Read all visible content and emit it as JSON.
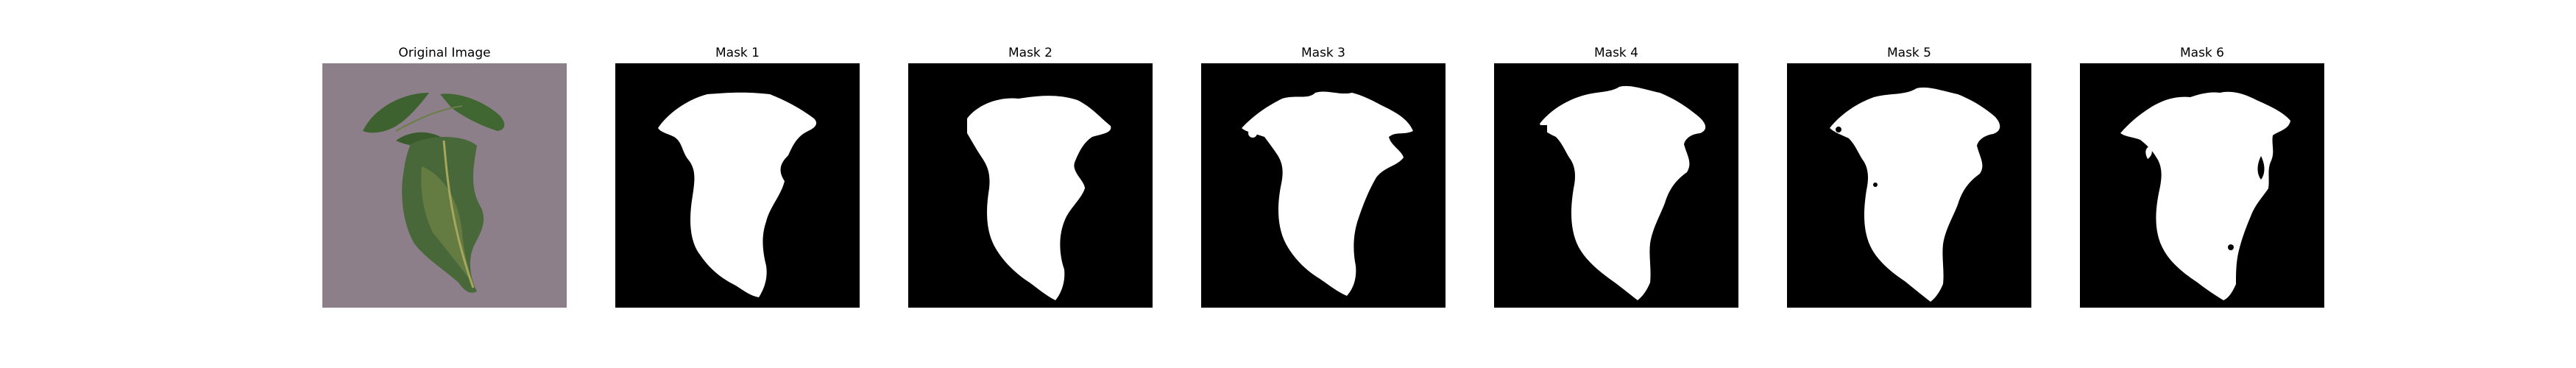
{
  "figure": {
    "panels": [
      {
        "title": "Original Image",
        "kind": "photo"
      },
      {
        "title": "Mask 1",
        "kind": "mask"
      },
      {
        "title": "Mask 2",
        "kind": "mask"
      },
      {
        "title": "Mask 3",
        "kind": "mask"
      },
      {
        "title": "Mask 4",
        "kind": "mask"
      },
      {
        "title": "Mask 5",
        "kind": "mask"
      },
      {
        "title": "Mask 6",
        "kind": "mask"
      }
    ]
  },
  "colors": {
    "background": "#ffffff",
    "mask_background": "#000000",
    "mask_foreground": "#ffffff",
    "photo_background": "#8d7f89",
    "leaf_dark": "#3b5b2d",
    "leaf_light": "#5d7f3e",
    "leaf_vein": "#a7a65c"
  }
}
